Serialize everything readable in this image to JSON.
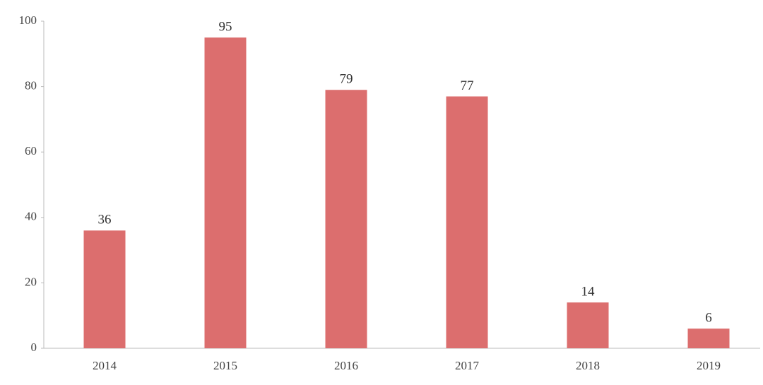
{
  "chart_data": {
    "type": "bar",
    "categories": [
      "2014",
      "2015",
      "2016",
      "2017",
      "2018",
      "2019"
    ],
    "values": [
      36,
      95,
      79,
      77,
      14,
      6
    ],
    "color": "#dc6e6e",
    "ylim": [
      0,
      100
    ],
    "yticks": [
      0,
      20,
      40,
      60,
      80,
      100
    ],
    "grid": false
  }
}
